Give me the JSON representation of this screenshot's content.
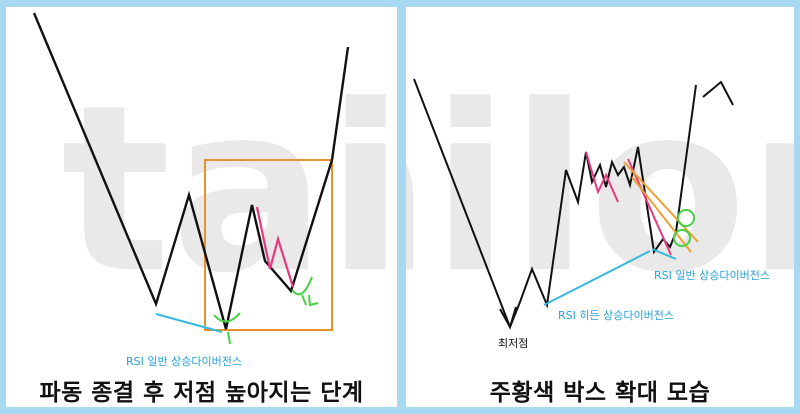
{
  "watermark": {
    "text": "tailong",
    "color": "#e9e9e9"
  },
  "colors": {
    "price_line": "#111111",
    "box": "#e8912f",
    "pink_line": "#e8397e",
    "green_mark": "#45d145",
    "rsi_line": "#37b8e0",
    "orange_trend": "#f0a030",
    "label_blue": "#27a3d9"
  },
  "left_panel": {
    "caption": "파동 종결 후 저점 높아지는 단계",
    "rsi_label": "RSI 일반 상승다이버전스"
  },
  "right_panel": {
    "caption": "주황색 박스 확대 모습",
    "low_label": "최저점",
    "hidden_label": "RSI 히든 상승다이버전스",
    "regular_label": "RSI 일반 상승다이버전스"
  }
}
